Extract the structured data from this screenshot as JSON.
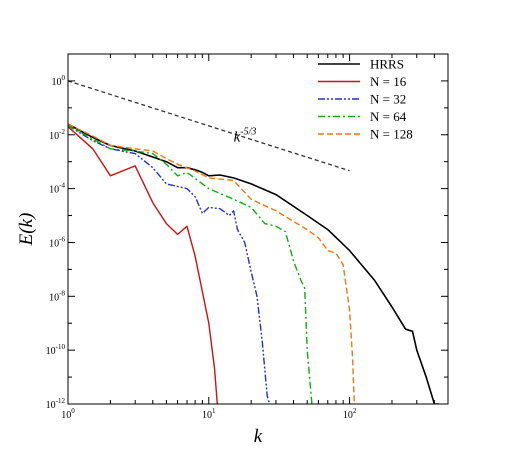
{
  "chart_data": {
    "type": "line",
    "xscale": "log",
    "yscale": "log",
    "xlim": [
      1,
      500
    ],
    "ylim": [
      1e-12,
      10
    ],
    "xlabel": "k",
    "ylabel": "E(k)",
    "x_ticks": [
      {
        "value": 1,
        "base": "10",
        "exp": "0"
      },
      {
        "value": 10,
        "base": "10",
        "exp": "1"
      },
      {
        "value": 100,
        "base": "10",
        "exp": "2"
      }
    ],
    "y_ticks": [
      {
        "value": 1,
        "base": "10",
        "exp": "0"
      },
      {
        "value": 0.01,
        "base": "10",
        "exp": "-2"
      },
      {
        "value": 0.0001,
        "base": "10",
        "exp": "-4"
      },
      {
        "value": 1e-06,
        "base": "10",
        "exp": "-6"
      },
      {
        "value": 1e-08,
        "base": "10",
        "exp": "-8"
      },
      {
        "value": 1e-10,
        "base": "10",
        "exp": "-10"
      },
      {
        "value": 1e-12,
        "base": "10",
        "exp": "-12"
      }
    ],
    "legend_position": "top-right",
    "series": [
      {
        "name": "HRRS",
        "color": "#000000",
        "dash": "solid",
        "width": 1.6,
        "points": [
          [
            1,
            0.025
          ],
          [
            1.5,
            0.008
          ],
          [
            2,
            0.004
          ],
          [
            3,
            0.0025
          ],
          [
            4,
            0.0015
          ],
          [
            5,
            0.001
          ],
          [
            6,
            0.0006
          ],
          [
            7,
            0.0006
          ],
          [
            8,
            0.0005
          ],
          [
            9,
            0.0004
          ],
          [
            10,
            0.0003
          ],
          [
            12,
            0.00032
          ],
          [
            15,
            0.00025
          ],
          [
            20,
            0.00015
          ],
          [
            30,
            6e-05
          ],
          [
            50,
            1e-05
          ],
          [
            70,
            3e-06
          ],
          [
            100,
            5e-07
          ],
          [
            150,
            4e-08
          ],
          [
            200,
            4e-09
          ],
          [
            250,
            6e-10
          ],
          [
            280,
            5e-10
          ],
          [
            300,
            1e-10
          ],
          [
            350,
            1e-11
          ],
          [
            400,
            1e-12
          ],
          [
            430,
            3e-13
          ]
        ]
      },
      {
        "name": "N = 16",
        "color": "#cc1111",
        "dash": "solid",
        "width": 1.4,
        "points": [
          [
            1,
            0.02
          ],
          [
            1.5,
            0.003
          ],
          [
            2,
            0.0003
          ],
          [
            3,
            0.0007
          ],
          [
            4,
            3e-05
          ],
          [
            5,
            5e-06
          ],
          [
            6,
            2e-06
          ],
          [
            7,
            4e-06
          ],
          [
            8,
            3e-07
          ],
          [
            10,
            1e-09
          ],
          [
            11,
            2e-11
          ],
          [
            11.5,
            3e-13
          ]
        ]
      },
      {
        "name": "N = 32",
        "color": "#2233cc",
        "dash": "dashdotdot",
        "width": 1.4,
        "points": [
          [
            1,
            0.022
          ],
          [
            1.5,
            0.006
          ],
          [
            2,
            0.003
          ],
          [
            3,
            0.002
          ],
          [
            4,
            0.0006
          ],
          [
            5,
            0.00015
          ],
          [
            7,
            0.0001
          ],
          [
            8,
            5e-05
          ],
          [
            9,
            1.2e-05
          ],
          [
            10,
            2e-05
          ],
          [
            12,
            1.8e-05
          ],
          [
            14,
            1e-05
          ],
          [
            15,
            1.5e-05
          ],
          [
            16,
            3e-06
          ],
          [
            18,
            1e-06
          ],
          [
            20,
            8e-08
          ],
          [
            22,
            1e-08
          ],
          [
            24,
            2e-10
          ],
          [
            26,
            2e-12
          ],
          [
            27,
            3e-13
          ]
        ]
      },
      {
        "name": "N = 64",
        "color": "#11aa11",
        "dash": "dashdot",
        "width": 1.4,
        "points": [
          [
            1,
            0.022
          ],
          [
            1.5,
            0.007
          ],
          [
            2,
            0.003
          ],
          [
            3,
            0.0025
          ],
          [
            4,
            0.002
          ],
          [
            5,
            0.0008
          ],
          [
            6,
            0.0003
          ],
          [
            7,
            0.0004
          ],
          [
            10,
            0.0001
          ],
          [
            15,
            4e-05
          ],
          [
            20,
            2e-05
          ],
          [
            25,
            5e-06
          ],
          [
            30,
            4e-06
          ],
          [
            35,
            2.5e-06
          ],
          [
            40,
            2e-07
          ],
          [
            45,
            4e-08
          ],
          [
            48,
            2e-08
          ],
          [
            50,
            1e-10
          ],
          [
            52,
            1e-11
          ],
          [
            54,
            3e-13
          ]
        ]
      },
      {
        "name": "N = 128",
        "color": "#ee7711",
        "dash": "dashed",
        "width": 1.4,
        "points": [
          [
            1,
            0.025
          ],
          [
            1.5,
            0.009
          ],
          [
            2,
            0.004
          ],
          [
            3,
            0.003
          ],
          [
            4,
            0.0025
          ],
          [
            5,
            0.0013
          ],
          [
            6,
            0.0008
          ],
          [
            8,
            0.00045
          ],
          [
            10,
            0.00025
          ],
          [
            15,
            0.0002
          ],
          [
            20,
            4e-05
          ],
          [
            30,
            1.5e-05
          ],
          [
            40,
            6e-06
          ],
          [
            50,
            3e-06
          ],
          [
            60,
            1.5e-06
          ],
          [
            70,
            5e-07
          ],
          [
            80,
            4e-07
          ],
          [
            90,
            1.5e-07
          ],
          [
            100,
            3e-09
          ],
          [
            105,
            5e-11
          ],
          [
            108,
            3e-13
          ]
        ]
      }
    ],
    "reference_line": {
      "label_base": "k",
      "label_exp": "-5/3",
      "color": "#333333",
      "points": [
        [
          1,
          1
        ],
        [
          100,
          0.00046
        ]
      ],
      "label_at": [
        15,
        0.0056
      ]
    }
  }
}
